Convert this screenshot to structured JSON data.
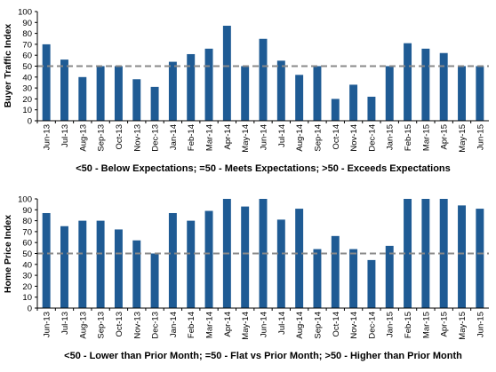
{
  "colors": {
    "bar": "#1f5b94",
    "reference_line": "#8a8a8a",
    "axis": "#000000"
  },
  "chart_data": [
    {
      "type": "bar",
      "ylabel": "Buyer Traffic Index",
      "xlabel": "",
      "ylim": [
        0,
        100
      ],
      "yticks": [
        0,
        10,
        20,
        30,
        40,
        50,
        60,
        70,
        80,
        90,
        100
      ],
      "reference_line": 50,
      "grid": false,
      "categories": [
        "Jun-13",
        "Jul-13",
        "Aug-13",
        "Sep-13",
        "Oct-13",
        "Nov-13",
        "Dec-13",
        "Jan-14",
        "Feb-14",
        "Mar-14",
        "Apr-14",
        "May-14",
        "Jun-14",
        "Jul-14",
        "Aug-14",
        "Sep-14",
        "Oct-14",
        "Nov-14",
        "Dec-14",
        "Jan-15",
        "Feb-15",
        "Mar-15",
        "Apr-15",
        "May-15",
        "Jun-15"
      ],
      "values": [
        70,
        56,
        40,
        50,
        50,
        38,
        31,
        54,
        61,
        66,
        87,
        50,
        75,
        55,
        42,
        50,
        20,
        33,
        22,
        50,
        71,
        66,
        62,
        50,
        50
      ],
      "caption": "<50 - Below Expectations; =50 - Meets Expectations; >50 - Exceeds Expectations"
    },
    {
      "type": "bar",
      "ylabel": "Home Price Index",
      "xlabel": "",
      "ylim": [
        0,
        100
      ],
      "yticks": [
        0,
        10,
        20,
        30,
        40,
        50,
        60,
        70,
        80,
        90,
        100
      ],
      "reference_line": 50,
      "grid": false,
      "categories": [
        "Jun-13",
        "Jul-13",
        "Aug-13",
        "Sep-13",
        "Oct-13",
        "Nov-13",
        "Dec-13",
        "Jan-14",
        "Feb-14",
        "Mar-14",
        "Apr-14",
        "May-14",
        "Jun-14",
        "Jul-14",
        "Aug-14",
        "Sep-14",
        "Oct-14",
        "Nov-14",
        "Dec-14",
        "Jan-15",
        "Feb-15",
        "Mar-15",
        "Apr-15",
        "May-15",
        "Jun-15"
      ],
      "values": [
        87,
        75,
        80,
        80,
        72,
        62,
        50,
        87,
        80,
        89,
        100,
        93,
        100,
        81,
        91,
        54,
        66,
        54,
        44,
        57,
        100,
        100,
        100,
        94,
        91
      ],
      "caption": "<50 - Lower than Prior Month; =50 - Flat vs Prior Month; >50 - Higher than Prior Month"
    }
  ]
}
